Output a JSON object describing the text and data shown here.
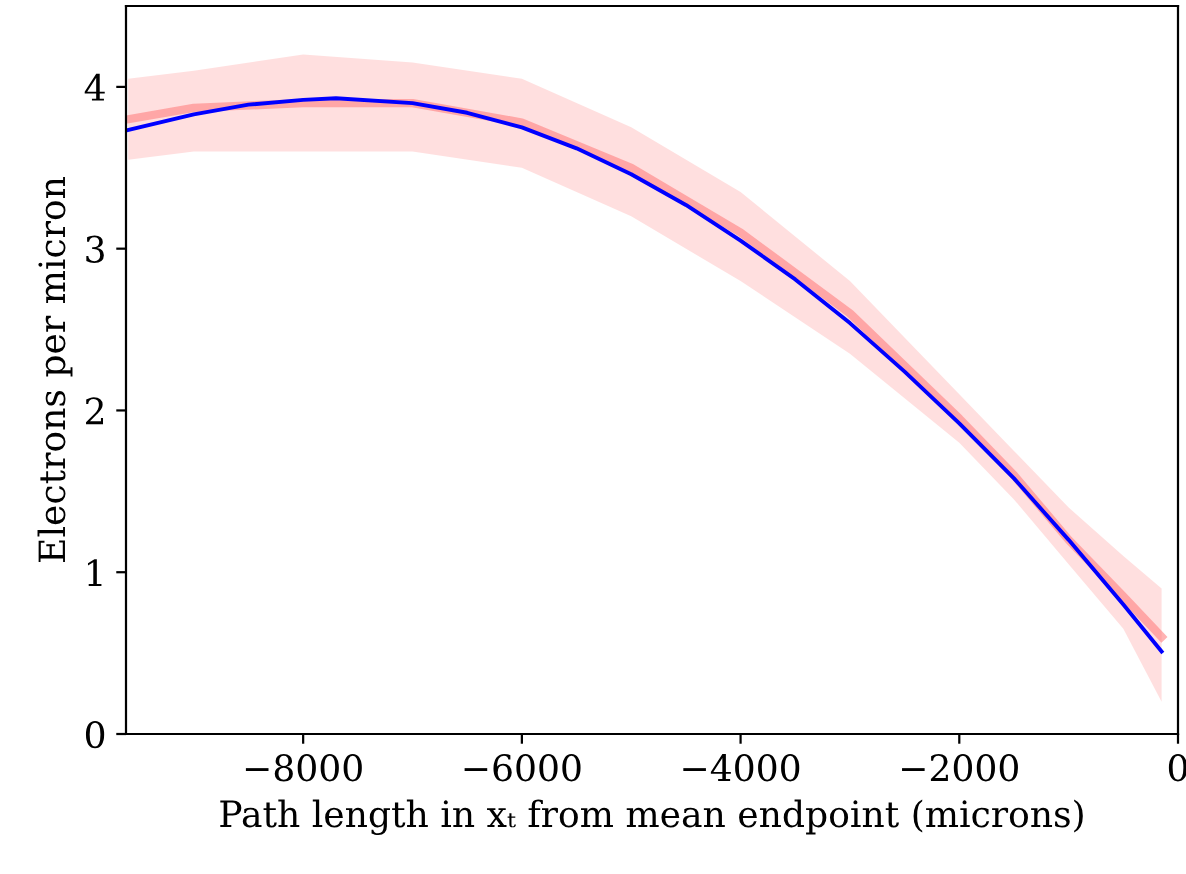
{
  "chart_data": {
    "type": "line",
    "xlabel": "Path length in xₜ from mean endpoint (microns)",
    "ylabel": "Electrons per micron",
    "xlim": [
      -9620,
      0
    ],
    "ylim": [
      0,
      4.5
    ],
    "xticks": [
      -8000,
      -6000,
      -4000,
      -2000,
      0
    ],
    "yticks": [
      0,
      1,
      2,
      3,
      4
    ],
    "grid": false,
    "legend": false,
    "marker": "none",
    "line_style": "solid",
    "series": [
      {
        "color": "#ff8080",
        "x": [
          -9600,
          -9000,
          -8000,
          -7000,
          -6000,
          -5000,
          -4000,
          -3000,
          -2000,
          -1500,
          -1000,
          -500,
          -150
        ],
        "values": [
          3.8,
          3.87,
          3.9,
          3.9,
          3.78,
          3.5,
          3.1,
          2.6,
          1.95,
          1.6,
          1.2,
          0.85,
          0.6
        ],
        "lower": [
          3.55,
          3.6,
          3.6,
          3.6,
          3.5,
          3.2,
          2.8,
          2.35,
          1.8,
          1.45,
          1.05,
          0.65,
          0.2
        ],
        "upper": [
          4.05,
          4.1,
          4.2,
          4.15,
          4.05,
          3.75,
          3.35,
          2.8,
          2.1,
          1.75,
          1.4,
          1.1,
          0.9
        ]
      },
      {
        "color": "#0000ff",
        "x": [
          -9620,
          -9000,
          -8500,
          -8000,
          -7700,
          -7000,
          -6500,
          -6000,
          -5500,
          -5000,
          -4500,
          -4000,
          -3500,
          -3000,
          -2500,
          -2000,
          -1500,
          -1000,
          -500,
          -150
        ],
        "values": [
          3.73,
          3.83,
          3.89,
          3.92,
          3.93,
          3.9,
          3.84,
          3.75,
          3.62,
          3.46,
          3.27,
          3.05,
          2.81,
          2.54,
          2.24,
          1.92,
          1.58,
          1.2,
          0.8,
          0.51
        ]
      }
    ]
  }
}
